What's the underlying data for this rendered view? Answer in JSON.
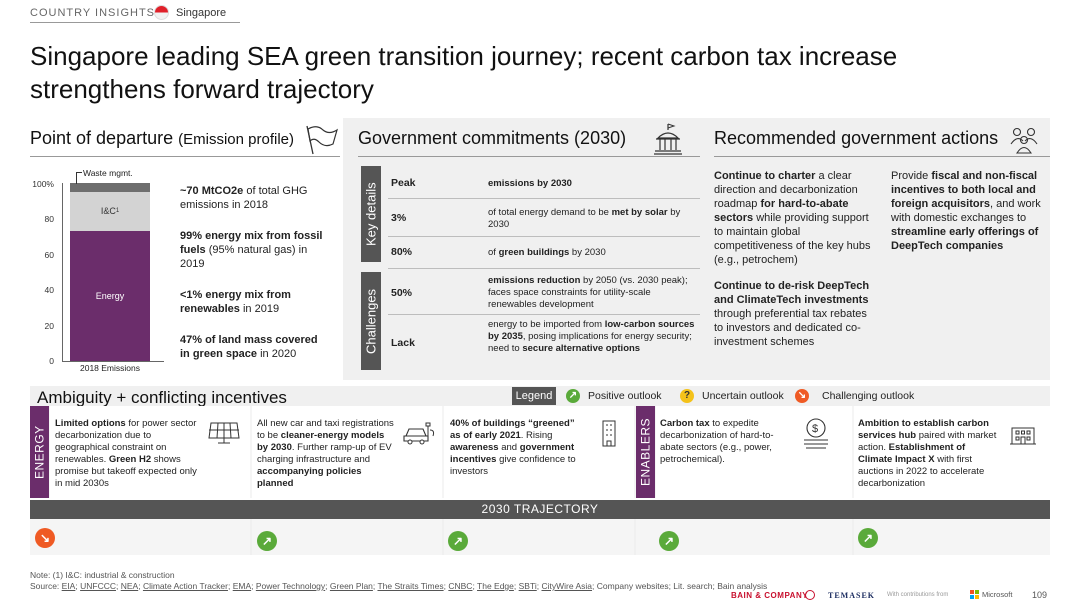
{
  "header": {
    "label": "COUNTRY INSIGHTS",
    "country": "Singapore"
  },
  "title": "Singapore leading SEA green transition journey; recent carbon tax increase strengthens forward trajectory",
  "departure": {
    "title": "Point of departure",
    "subtitle": "(Emission profile)",
    "chart_data": {
      "type": "bar",
      "categories": [
        "2018 Emissions"
      ],
      "series": [
        {
          "name": "Energy",
          "values": [
            73
          ]
        },
        {
          "name": "I&C",
          "values": [
            22
          ]
        },
        {
          "name": "Waste mgmt.",
          "values": [
            5
          ]
        }
      ],
      "yticks": [
        "100%",
        "80",
        "60",
        "40",
        "20",
        "0"
      ],
      "ylim": [
        0,
        100
      ],
      "i_c_label": "I&C",
      "i_c_sup": "1",
      "waste_label": "Waste mgmt.",
      "energy_label": "Energy",
      "xlabel": "2018 Emissions"
    },
    "facts": [
      {
        "b": "~70 MtCO2e",
        "t": " of total GHG emissions in 2018"
      },
      {
        "b": "99% energy mix from fossil fuels",
        "t": " (95% natural gas) in 2019"
      },
      {
        "b": "<1% energy mix from renewables",
        "t": " in 2019"
      },
      {
        "b": "47% of land mass covered in green space",
        "t": " in 2020"
      }
    ]
  },
  "gov": {
    "title": "Government commitments (2030)",
    "key_label": "Key details",
    "chal_label": "Challenges",
    "rows": [
      {
        "k": "Peak",
        "b1": "emissions by 2030",
        "t1": "",
        "b2": "",
        "t2": ""
      },
      {
        "k": "3%",
        "b1": "",
        "t1": "of total energy demand to be ",
        "b2": "met by solar",
        "t2": " by 2030"
      },
      {
        "k": "80%",
        "b1": "",
        "t1": "of ",
        "b2": "green buildings",
        "t2": " by 2030"
      },
      {
        "k": "50%",
        "b1": "emissions reduction",
        "t1": " by 2050 (vs. 2030 peak); faces space constraints for utility-scale renewables development",
        "b2": "",
        "t2": ""
      },
      {
        "k": "Lack",
        "b1": "",
        "t1": "energy to be imported from ",
        "b2": "low-carbon sources by 2035",
        "t2": ", posing implications for energy security; need to ",
        "b3": "secure alternative options"
      }
    ]
  },
  "actions": {
    "title": "Recommended government actions",
    "a1": {
      "b": "Continue to charter",
      "t1": " a clear direction and decarbonization roadmap ",
      "b2": "for hard-to-abate sectors",
      "t2": " while providing support to maintain global competitiveness of the key hubs (e.g., petrochem)"
    },
    "a2": {
      "b": "Continue to de-risk DeepTech and ClimateTech investments",
      "t": " through preferential tax rebates to investors and dedicated co-investment schemes"
    },
    "a3": {
      "t1": "Provide ",
      "b": "fiscal and non-fiscal incentives to both local and foreign acquisitors",
      "t2": ", and work with domestic exchanges to ",
      "b2": "streamline early offerings of DeepTech companies"
    }
  },
  "ambiguity": {
    "title": "Ambiguity + conflicting incentives",
    "legend": "Legend",
    "positive": "Positive outlook",
    "uncertain": "Uncertain outlook",
    "challenging": "Challenging outlook"
  },
  "energy_label": "ENERGY",
  "enablers_label": "ENABLERS",
  "cards": [
    {
      "b": "Limited options",
      "t": " for power sector decarbonization due to geographical constraint on renewables. ",
      "b2": "Green H2",
      "t2": " shows promise but takeoff expected only in mid 2030s"
    },
    {
      "t": "All new car and taxi registrations to be ",
      "b": "cleaner-energy models by 2030",
      "t2": ". Further ramp-up of EV charging infrastructure and ",
      "b2": "accompanying policies planned"
    },
    {
      "b": "40% of buildings “greened” as of early 2021",
      "t": ". Rising ",
      "b2": "awareness",
      "t2": " and ",
      "b3": "government incentives",
      "t3": " give confidence to investors"
    },
    {
      "b": "Carbon tax",
      "t": " to expedite decarbonization of hard-to-abate sectors (e.g., power, petrochemical)."
    },
    {
      "b": "Ambition to establish carbon services hub",
      "t": " paired with market action. ",
      "b2": "Establishment of Climate Impact X",
      "t2": " with first auctions in 2022 to accelerate decarbonization"
    }
  ],
  "trajectory": "2030 TRAJECTORY",
  "outlook": {
    "energy": "challenging",
    "others": "positive"
  },
  "footer": {
    "note": "Note: (1) I&C: industrial & construction",
    "source_prefix": "Source: ",
    "sources": [
      "EIA",
      "UNFCCC",
      "NEA",
      "Climate Action Tracker",
      "EMA",
      "Power Technology",
      "Green Plan",
      "The Straits Times",
      "CNBC",
      "The Edge",
      "SBTi",
      "CityWire Asia"
    ],
    "source_suffix": "; Company websites; Lit. search; Bain analysis",
    "bain": "BAIN & COMPANY",
    "temasek": "TEMASEK",
    "contrib": "With contributions from",
    "microsoft": "Microsoft",
    "page": "109"
  },
  "colors": {
    "purple": "#6b2d6b",
    "gray": "#555555",
    "green": "#5aaa3a",
    "yellow": "#f4c21a",
    "orange": "#ef5a24"
  }
}
